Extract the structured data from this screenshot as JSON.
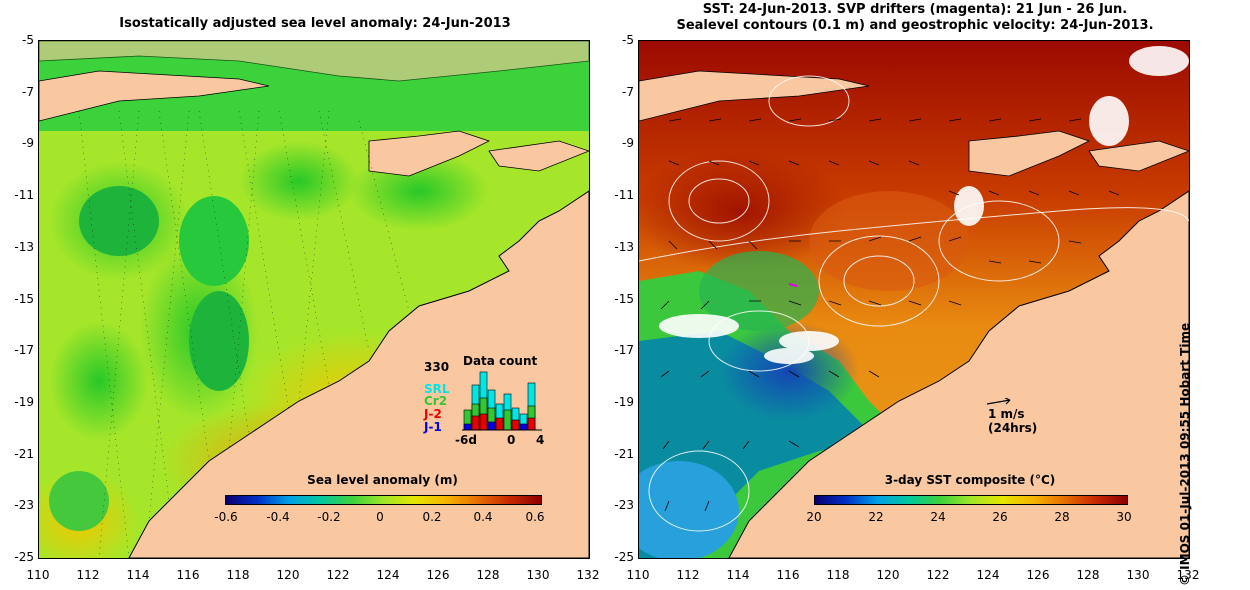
{
  "left_panel": {
    "title": "Isostatically adjusted sea level anomaly: 24-Jun-2013",
    "colorbar_label": "Sea level anomaly (m)",
    "colorbar_ticks": [
      "-0.6",
      "-0.4",
      "-0.2",
      "0",
      "0.2",
      "0.4",
      "0.6"
    ],
    "colorbar_colors": [
      "#08006e",
      "#0030c8",
      "#00a0e6",
      "#00c8a0",
      "#3cd23c",
      "#a0e628",
      "#e6e600",
      "#f5b400",
      "#e66e00",
      "#c82800",
      "#8c0000"
    ],
    "data_count": {
      "title": "Data count",
      "max_label": "330",
      "x_ticks": [
        "-6d",
        "0",
        "4"
      ],
      "legend": [
        {
          "label": "SRL",
          "color": "#00e6e6"
        },
        {
          "label": "Cr2",
          "color": "#32c832"
        },
        {
          "label": "J-2",
          "color": "#e60000"
        },
        {
          "label": "J-1",
          "color": "#0000e6"
        }
      ]
    }
  },
  "right_panel": {
    "title_line1": "SST: 24-Jun-2013. SVP drifters (magenta): 21 Jun - 26 Jun.",
    "title_line2": "Sealevel contours (0.1 m) and geostrophic velocity: 24-Jun-2013.",
    "colorbar_label": "3-day SST composite (°C)",
    "colorbar_ticks": [
      "20",
      "22",
      "24",
      "26",
      "28",
      "30"
    ],
    "colorbar_colors": [
      "#08006e",
      "#0030c8",
      "#00a0e6",
      "#00c8a0",
      "#3cd23c",
      "#a0e628",
      "#e6e600",
      "#f5b400",
      "#e66e00",
      "#c82800",
      "#8c0000"
    ],
    "velocity_scale": {
      "value": "1 m/s",
      "note": "(24hrs)"
    }
  },
  "axes": {
    "y_ticks": [
      "-5",
      "-7",
      "-9",
      "-11",
      "-13",
      "-15",
      "-17",
      "-19",
      "-21",
      "-23",
      "-25"
    ],
    "x_ticks": [
      "110",
      "112",
      "114",
      "116",
      "118",
      "120",
      "122",
      "124",
      "126",
      "128",
      "130",
      "132"
    ]
  },
  "credit": "© IMOS 01-Jul-2013 09:55 Hobart Time",
  "colors": {
    "land": "#fac8a0",
    "sla_base": "#a6e62a",
    "sst_warm": "#e88a10",
    "sst_hot": "#9c0a00"
  }
}
